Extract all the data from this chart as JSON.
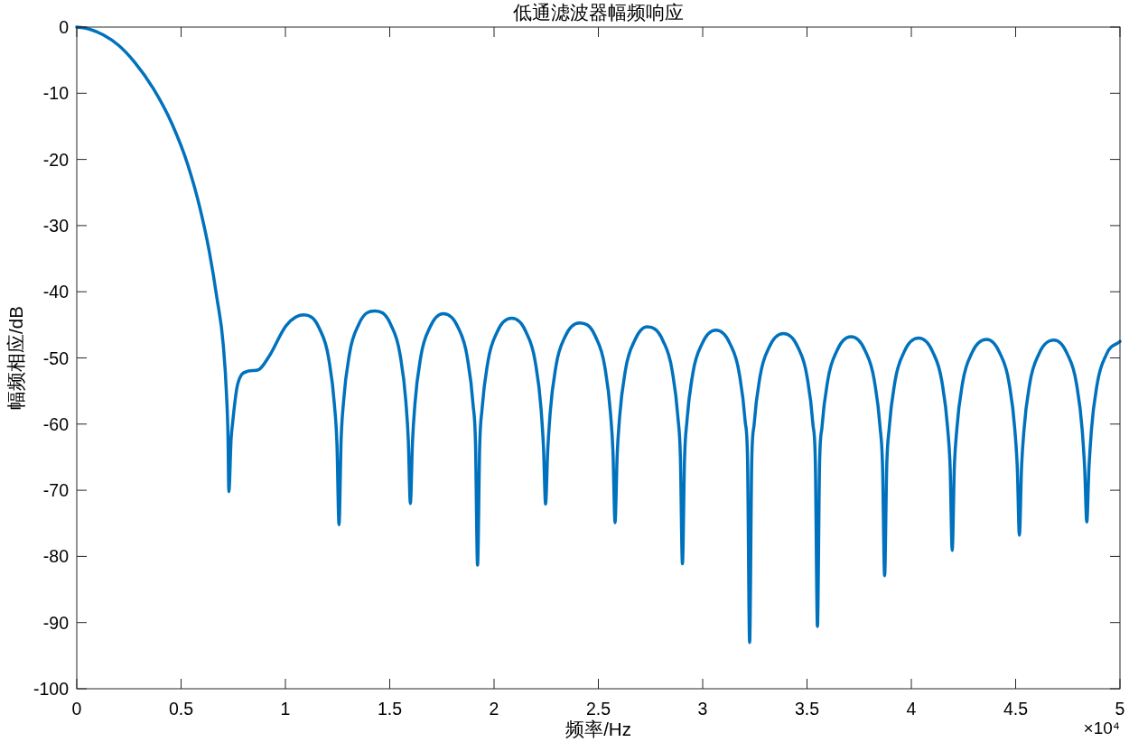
{
  "chart_data": {
    "type": "line",
    "title": "低通滤波器幅频响应",
    "xlabel": "频率/Hz",
    "ylabel": "幅频相应/dB",
    "annotations": [
      "×10⁴"
    ],
    "x": [
      0,
      0.06,
      0.128,
      0.202,
      0.277,
      0.367,
      0.456,
      0.531,
      0.59,
      0.635,
      0.672,
      0.702,
      0.717,
      0.725,
      0.729,
      0.74,
      0.747,
      0.771,
      0.821,
      0.871,
      0.921,
      1.004,
      1.087,
      1.162,
      1.207,
      1.235,
      1.247,
      1.257,
      1.267,
      1.279,
      1.307,
      1.352,
      1.429,
      1.504,
      1.549,
      1.577,
      1.589,
      1.599,
      1.609,
      1.621,
      1.649,
      1.694,
      1.757,
      1.826,
      1.871,
      1.899,
      1.911,
      1.921,
      1.931,
      1.943,
      1.971,
      2.016,
      2.085,
      2.152,
      2.197,
      2.225,
      2.237,
      2.247,
      2.257,
      2.269,
      2.297,
      2.342,
      2.41,
      2.485,
      2.53,
      2.558,
      2.57,
      2.58,
      2.59,
      2.602,
      2.63,
      2.675,
      2.734,
      2.808,
      2.853,
      2.881,
      2.893,
      2.903,
      2.913,
      2.925,
      2.953,
      2.998,
      3.063,
      3.13,
      3.175,
      3.203,
      3.215,
      3.225,
      3.235,
      3.247,
      3.275,
      3.32,
      3.387,
      3.455,
      3.5,
      3.528,
      3.54,
      3.55,
      3.56,
      3.572,
      3.6,
      3.645,
      3.711,
      3.777,
      3.822,
      3.85,
      3.862,
      3.872,
      3.882,
      3.894,
      3.922,
      3.967,
      4.035,
      4.101,
      4.146,
      4.174,
      4.186,
      4.196,
      4.206,
      4.218,
      4.246,
      4.291,
      4.361,
      4.423,
      4.468,
      4.496,
      4.508,
      4.518,
      4.528,
      4.54,
      4.568,
      4.613,
      4.684,
      4.746,
      4.791,
      4.819,
      4.831,
      4.841,
      4.851,
      4.863,
      4.891,
      4.936,
      5.0
    ],
    "series": [
      {
        "color": "#0072bd",
        "values": [
          0,
          -0.3,
          -1.2,
          -2.8,
          -5.3,
          -9.3,
          -14.6,
          -20.7,
          -27.3,
          -33.9,
          -41.0,
          -48.0,
          -55.1,
          -62.1,
          -70.2,
          -62.1,
          -59.8,
          -54.0,
          -52.0,
          -51.8,
          -49.8,
          -45.1,
          -43.5,
          -45.5,
          -50.0,
          -57.1,
          -63.0,
          -75.2,
          -62.4,
          -56.5,
          -49.4,
          -44.9,
          -42.9,
          -44.9,
          -49.4,
          -56.5,
          -62.4,
          -72.0,
          -62.8,
          -56.9,
          -49.8,
          -45.3,
          -43.3,
          -45.3,
          -49.8,
          -56.9,
          -62.8,
          -81.3,
          -63.5,
          -57.6,
          -50.5,
          -46.0,
          -44.0,
          -46.0,
          -50.5,
          -57.6,
          -63.5,
          -72.1,
          -64.2,
          -58.3,
          -51.2,
          -46.7,
          -44.7,
          -46.7,
          -51.2,
          -58.3,
          -64.2,
          -74.9,
          -64.8,
          -58.9,
          -51.8,
          -47.3,
          -45.3,
          -47.3,
          -51.8,
          -58.9,
          -64.8,
          -81.1,
          -65.3,
          -59.4,
          -52.3,
          -47.8,
          -45.8,
          -47.8,
          -52.3,
          -59.4,
          -65.3,
          -93.0,
          -65.8,
          -59.9,
          -52.8,
          -48.3,
          -46.3,
          -48.3,
          -52.8,
          -59.9,
          -65.8,
          -90.6,
          -66.3,
          -60.4,
          -53.3,
          -48.8,
          -46.8,
          -48.8,
          -53.3,
          -60.4,
          -66.3,
          -82.9,
          -66.5,
          -60.6,
          -53.5,
          -49.0,
          -47.0,
          -49.0,
          -53.5,
          -60.6,
          -66.5,
          -79.1,
          -66.7,
          -60.8,
          -53.7,
          -49.2,
          -47.2,
          -49.2,
          -53.7,
          -60.8,
          -66.7,
          -76.8,
          -66.8,
          -60.9,
          -53.8,
          -49.3,
          -47.3,
          -49.3,
          -53.8,
          -60.9,
          -66.8,
          -74.8,
          -66.9,
          -61.0,
          -53.9,
          -49.4,
          -47.5
        ]
      }
    ],
    "xlim": [
      0,
      5
    ],
    "ylim": [
      -100,
      0
    ],
    "xticks": [
      0,
      0.5,
      1,
      1.5,
      2,
      2.5,
      3,
      3.5,
      4,
      4.5,
      5
    ],
    "yticks": [
      -100,
      -90,
      -80,
      -70,
      -60,
      -50,
      -40,
      -30,
      -20,
      -10,
      0
    ],
    "line_style": "solid"
  }
}
